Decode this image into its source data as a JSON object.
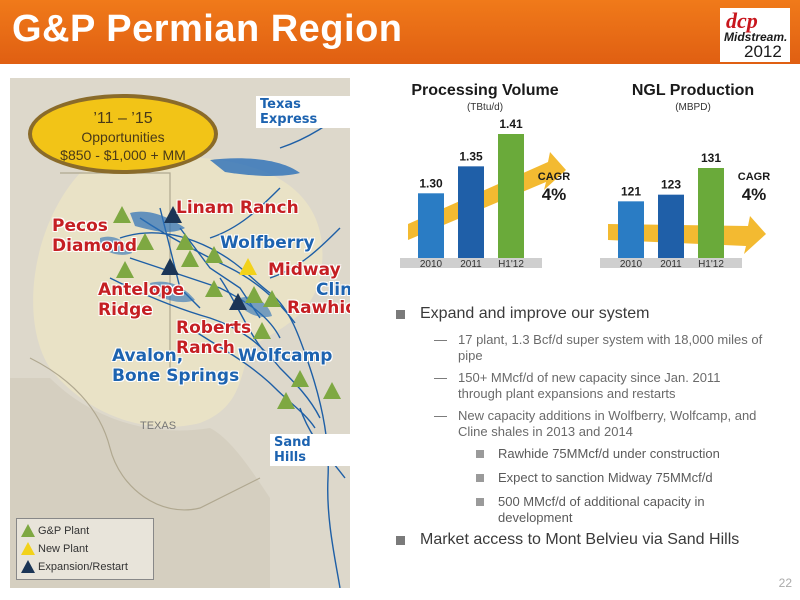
{
  "header": {
    "title": "G&P Permian Region"
  },
  "logo": {
    "brand": "dcp",
    "sub": "Midstream.",
    "year": "2012"
  },
  "map": {
    "opportunity": {
      "line1": "’11 – ’15",
      "line2": "Opportunities",
      "line3": "$850  - $1,000 + MM"
    },
    "labels": {
      "texas_express": "Texas Express",
      "pecos": "Pecos",
      "diamond": "Diamond",
      "linam": "Linam Ranch",
      "wolfberry": "Wolfberry",
      "midway": "Midway",
      "cline": "Cline",
      "rawhide": "Rawhide",
      "antelope": "Antelope",
      "ridge": "Ridge",
      "roberts": "Roberts",
      "ranch": "Ranch",
      "avalon": "Avalon,",
      "bone": "Bone Springs",
      "wolfcamp": "Wolfcamp",
      "sand_hills": "Sand Hills",
      "texas": "TEXAS"
    },
    "legend": [
      {
        "label": "G&P Plant",
        "color": "#7ea842"
      },
      {
        "label": "New Plant",
        "color": "#f2d21a"
      },
      {
        "label": "Expansion/Restart",
        "color": "#1b3556"
      }
    ]
  },
  "charts": {
    "processing": {
      "title": "Processing Volume",
      "unit": "(TBtu/d)",
      "cagr_label": "CAGR",
      "cagr_value": "4%"
    },
    "ngl": {
      "title": "NGL Production",
      "unit": "(MBPD)",
      "cagr_label": "CAGR",
      "cagr_value": "4%"
    }
  },
  "chart_data": [
    {
      "type": "bar",
      "title": "Processing Volume",
      "unit": "(TBtu/d)",
      "categories": [
        "2010",
        "2011",
        "H1'12"
      ],
      "values": [
        1.3,
        1.35,
        1.41
      ],
      "value_labels": [
        "1.30",
        "1.35",
        "1.41"
      ],
      "colors": [
        "#2a7cc4",
        "#1f5fa8",
        "#6aaa3a"
      ],
      "annotation": "CAGR 4%"
    },
    {
      "type": "bar",
      "title": "NGL Production",
      "unit": "(MBPD)",
      "categories": [
        "2010",
        "2011",
        "H1'12"
      ],
      "values": [
        121,
        123,
        131
      ],
      "value_labels": [
        "121",
        "123",
        "131"
      ],
      "colors": [
        "#2a7cc4",
        "#1f5fa8",
        "#6aaa3a"
      ],
      "annotation": "CAGR 4%"
    }
  ],
  "bullets": {
    "b1": "Expand and improve our system",
    "b1_1": "17 plant, 1.3 Bcf/d super system with 18,000 miles of pipe",
    "b1_2": "150+ MMcf/d of new capacity since Jan. 2011 through plant expansions and restarts",
    "b1_3": "New capacity additions in Wolfberry, Wolfcamp, and Cline shales in 2013 and 2014",
    "b1_3_1": "Rawhide 75MMcf/d under construction",
    "b1_3_2": "Expect to sanction Midway 75MMcf/d",
    "b1_3_3": "500 MMcf/d of additional capacity in development",
    "b2": "Market access to Mont Belvieu via Sand Hills"
  },
  "page_number": "22"
}
